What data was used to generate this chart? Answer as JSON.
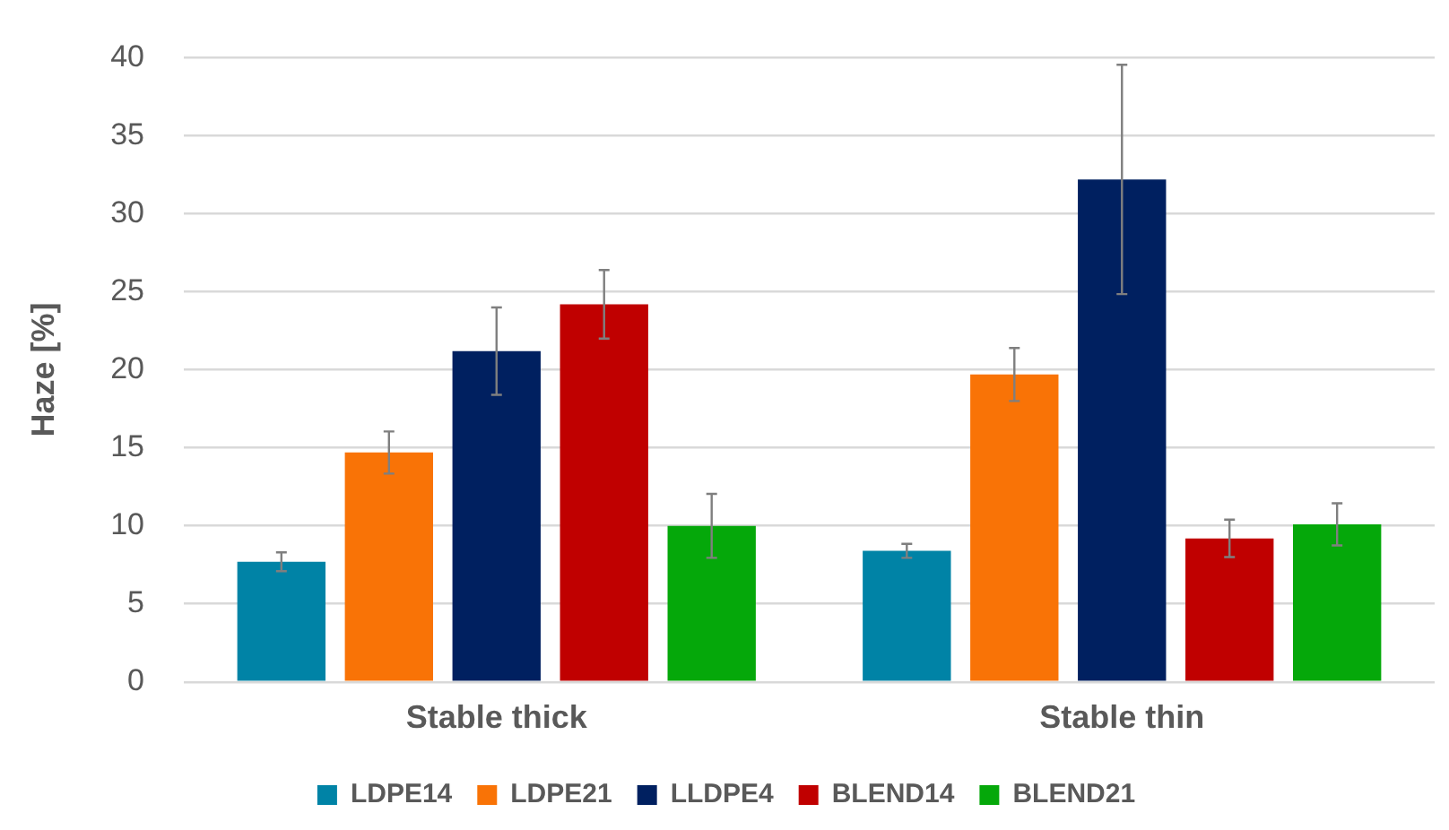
{
  "chart_data": {
    "type": "bar",
    "ylabel": "Haze [%]",
    "categories": [
      "Stable thick",
      "Stable thin"
    ],
    "series": [
      {
        "name": "LDPE14",
        "color": "#0083a6",
        "values": [
          7.7,
          8.4
        ],
        "errors": [
          0.6,
          0.45
        ]
      },
      {
        "name": "LDPE21",
        "color": "#f97306",
        "values": [
          14.7,
          19.7
        ],
        "errors": [
          1.35,
          1.7
        ]
      },
      {
        "name": "LLDPE4",
        "color": "#002060",
        "values": [
          21.2,
          32.2
        ],
        "errors": [
          2.8,
          7.35
        ]
      },
      {
        "name": "BLEND14",
        "color": "#c00000",
        "values": [
          24.2,
          9.2
        ],
        "errors": [
          2.2,
          1.2
        ]
      },
      {
        "name": "BLEND21",
        "color": "#05a80a",
        "values": [
          10,
          10.1
        ],
        "errors": [
          2.05,
          1.35
        ]
      }
    ],
    "ylim": [
      0,
      40
    ],
    "yticks": [
      0,
      5,
      10,
      15,
      20,
      25,
      30,
      35,
      40
    ],
    "grid": "y",
    "legend": "bottom"
  }
}
